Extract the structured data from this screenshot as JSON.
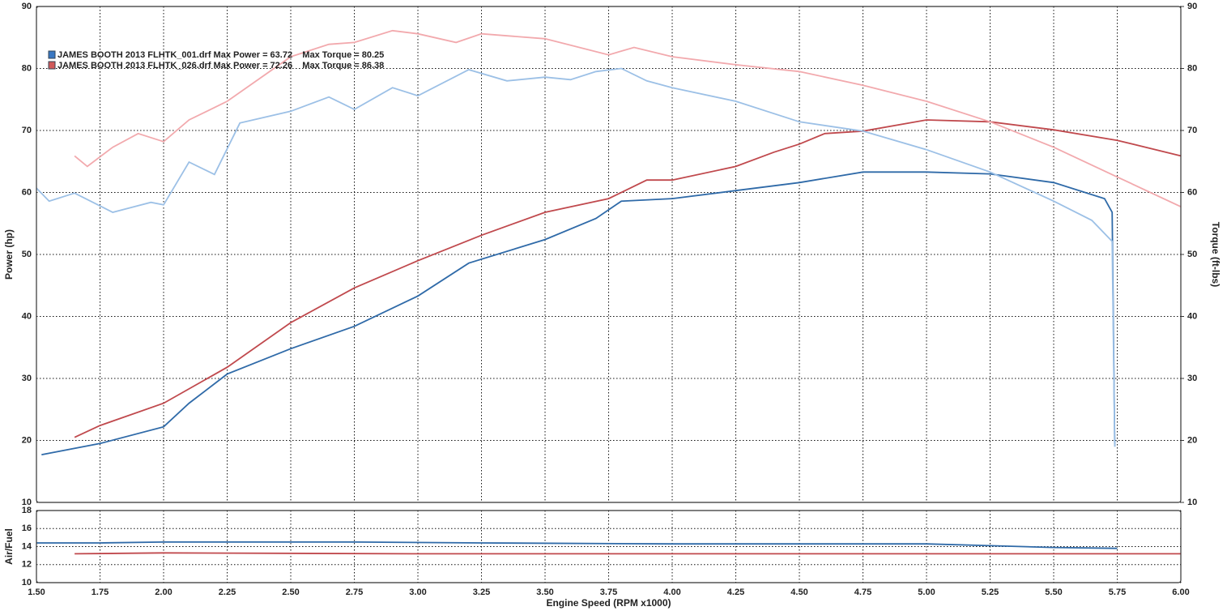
{
  "chart_data": [
    {
      "type": "line",
      "ylabel": "Power (hp)",
      "y2label": "Torque (ft-lbs)",
      "xlim": [
        1.5,
        6.0
      ],
      "xticks": [
        1.5,
        1.75,
        2.0,
        2.25,
        2.5,
        2.75,
        3.0,
        3.25,
        3.5,
        3.75,
        4.0,
        4.25,
        4.5,
        4.75,
        5.0,
        5.25,
        5.5,
        5.75,
        6.0
      ],
      "ylim": [
        10,
        90
      ],
      "yticks": [
        10,
        20,
        30,
        40,
        50,
        60,
        70,
        80,
        90
      ],
      "y2lim": [
        10,
        90
      ],
      "y2ticks": [
        10,
        20,
        30,
        40,
        50,
        60,
        70,
        80,
        90
      ],
      "grid": true,
      "legend": [
        {
          "label": "JAMES BOOTH 2013 FLHTK_001.drf Max Power = 63.72    Max Torque = 80.25",
          "color": "#3a78c2"
        },
        {
          "label": "JAMES BOOTH 2013 FLHTK_026.drf Max Power = 72.26    Max Torque = 86.38",
          "color": "#d05a5a"
        }
      ],
      "series": [
        {
          "color": "#2f6aa8",
          "x": [
            1.52,
            1.75,
            2.0,
            2.1,
            2.25,
            2.5,
            2.75,
            3.0,
            3.2,
            3.5,
            3.7,
            3.8,
            4.0,
            4.25,
            4.5,
            4.75,
            5.0,
            5.25,
            5.5,
            5.7,
            5.73,
            5.74
          ],
          "values": [
            17.7,
            19.5,
            22.2,
            26,
            30.7,
            34.8,
            38.4,
            43.3,
            48.6,
            52.4,
            55.8,
            58.6,
            59,
            60.3,
            61.6,
            63.3,
            63.3,
            63,
            61.6,
            59,
            56.8,
            19
          ]
        },
        {
          "color": "#c0494d",
          "x": [
            1.65,
            1.75,
            2.0,
            2.25,
            2.5,
            2.75,
            3.0,
            3.25,
            3.5,
            3.75,
            3.9,
            4.0,
            4.25,
            4.4,
            4.5,
            4.6,
            4.75,
            5.0,
            5.25,
            5.5,
            5.75,
            6.0
          ],
          "values": [
            20.5,
            22.4,
            26,
            31.8,
            39,
            44.6,
            49,
            53.1,
            56.8,
            59,
            62,
            62,
            64.2,
            66.5,
            67.8,
            69.5,
            69.9,
            71.7,
            71.4,
            70.1,
            68.4,
            65.9
          ]
        },
        {
          "color": "#9cc0e6",
          "axis": "y2",
          "x": [
            1.5,
            1.55,
            1.65,
            1.8,
            1.95,
            2.0,
            2.1,
            2.2,
            2.3,
            2.5,
            2.65,
            2.75,
            2.9,
            3.0,
            3.2,
            3.35,
            3.5,
            3.6,
            3.7,
            3.8,
            3.9,
            4.0,
            4.25,
            4.5,
            4.75,
            5.0,
            5.25,
            5.5,
            5.65,
            5.73,
            5.74
          ],
          "values": [
            60.7,
            58.6,
            59.9,
            56.8,
            58.4,
            58,
            64.9,
            62.9,
            71.2,
            73.1,
            75.4,
            73.4,
            76.9,
            75.6,
            79.8,
            78,
            78.6,
            78.2,
            79.5,
            80,
            78,
            76.9,
            74.7,
            71.4,
            69.9,
            66.9,
            63.3,
            58.6,
            55.5,
            52.1,
            19
          ]
        },
        {
          "color": "#f2a9ad",
          "axis": "y2",
          "x": [
            1.65,
            1.7,
            1.8,
            1.9,
            2.0,
            2.1,
            2.25,
            2.5,
            2.65,
            2.75,
            2.9,
            3.0,
            3.15,
            3.25,
            3.5,
            3.75,
            3.85,
            4.0,
            4.25,
            4.5,
            4.75,
            5.0,
            5.25,
            5.5,
            5.75,
            6.0
          ],
          "values": [
            65.9,
            64.2,
            67.3,
            69.5,
            68.2,
            71.7,
            74.7,
            81.9,
            83.9,
            84.2,
            86.1,
            85.6,
            84.2,
            85.6,
            84.8,
            82.2,
            83.4,
            81.9,
            80.6,
            79.5,
            77.3,
            74.7,
            71.4,
            67.3,
            62.5,
            57.7
          ]
        }
      ]
    },
    {
      "type": "line",
      "ylabel": "Air/Fuel",
      "xlabel": "Engine Speed (RPM x1000)",
      "xlim": [
        1.5,
        6.0
      ],
      "xticks": [
        {
          "value": 1.5,
          "label": "1.50"
        },
        {
          "value": 1.75,
          "label": "1.75"
        },
        {
          "value": 2.0,
          "label": "2.00"
        },
        {
          "value": 2.25,
          "label": "2.25"
        },
        {
          "value": 2.5,
          "label": "2.50"
        },
        {
          "value": 2.75,
          "label": "2.75"
        },
        {
          "value": 3.0,
          "label": "3.00"
        },
        {
          "value": 3.25,
          "label": "3.25"
        },
        {
          "value": 3.5,
          "label": "3.50"
        },
        {
          "value": 3.75,
          "label": "3.75"
        },
        {
          "value": 4.0,
          "label": "4.00"
        },
        {
          "value": 4.25,
          "label": "4.25"
        },
        {
          "value": 4.5,
          "label": "4.50"
        },
        {
          "value": 4.75,
          "label": "4.75"
        },
        {
          "value": 5.0,
          "label": "5.00"
        },
        {
          "value": 5.25,
          "label": "5.25"
        },
        {
          "value": 5.5,
          "label": "5.50"
        },
        {
          "value": 5.75,
          "label": "5.75"
        },
        {
          "value": 6.0,
          "label": "6.00"
        }
      ],
      "ylim": [
        10,
        18
      ],
      "yticks": [
        10,
        12,
        14,
        16,
        18
      ],
      "grid": true,
      "series": [
        {
          "color": "#2f6aa8",
          "x": [
            1.5,
            1.75,
            2.0,
            2.75,
            3.25,
            4.0,
            4.75,
            5.0,
            5.25,
            5.5,
            5.75
          ],
          "values": [
            14.4,
            14.4,
            14.5,
            14.5,
            14.4,
            14.3,
            14.3,
            14.3,
            14.1,
            13.9,
            13.8
          ]
        },
        {
          "color": "#c0494d",
          "x": [
            1.65,
            2.0,
            3.0,
            4.0,
            5.0,
            6.0
          ],
          "values": [
            13.2,
            13.3,
            13.2,
            13.2,
            13.2,
            13.2
          ]
        }
      ]
    }
  ]
}
